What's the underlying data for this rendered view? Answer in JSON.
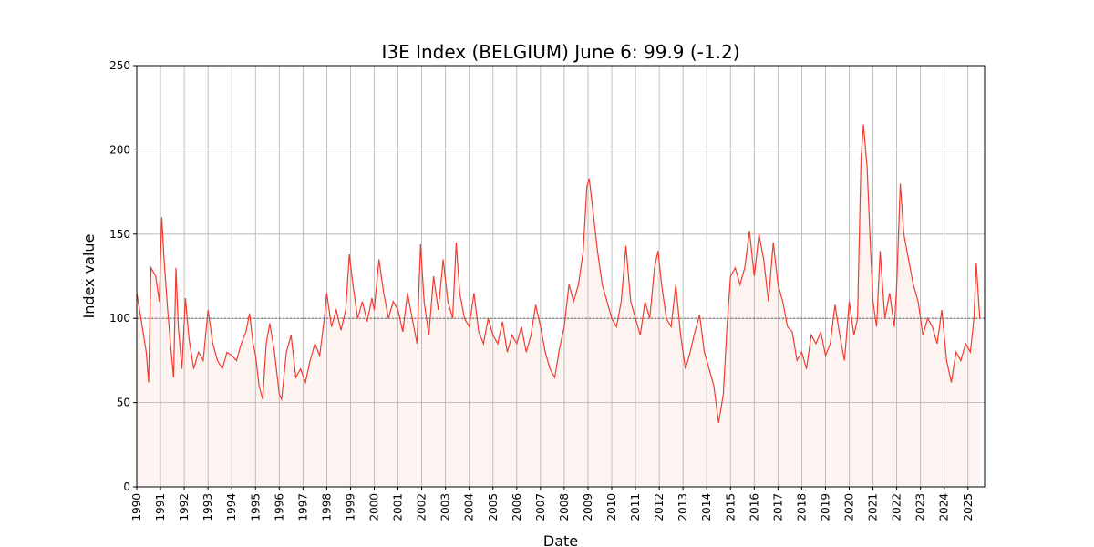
{
  "chart_data": {
    "type": "line",
    "title": "I3E Index (BELGIUM) June 6: 99.9 (-1.2)",
    "xlabel": "Date",
    "ylabel": "Index value",
    "x": [
      1990.0,
      1990.2,
      1990.4,
      1990.5,
      1990.6,
      1990.8,
      1990.95,
      1991.05,
      1991.15,
      1991.3,
      1991.45,
      1991.55,
      1991.65,
      1991.75,
      1991.9,
      1992.05,
      1992.2,
      1992.4,
      1992.6,
      1992.8,
      1993.0,
      1993.2,
      1993.4,
      1993.6,
      1993.8,
      1994.0,
      1994.2,
      1994.4,
      1994.6,
      1994.75,
      1994.9,
      1995.0,
      1995.15,
      1995.3,
      1995.45,
      1995.6,
      1995.8,
      1996.0,
      1996.1,
      1996.3,
      1996.5,
      1996.7,
      1996.9,
      1997.1,
      1997.3,
      1997.5,
      1997.7,
      1997.9,
      1998.0,
      1998.2,
      1998.4,
      1998.6,
      1998.8,
      1998.95,
      1999.1,
      1999.3,
      1999.5,
      1999.7,
      1999.9,
      2000.0,
      2000.2,
      2000.4,
      2000.6,
      2000.8,
      2001.0,
      2001.2,
      2001.4,
      2001.6,
      2001.8,
      2001.95,
      2002.1,
      2002.3,
      2002.5,
      2002.7,
      2002.9,
      2003.1,
      2003.3,
      2003.45,
      2003.6,
      2003.8,
      2004.0,
      2004.2,
      2004.4,
      2004.6,
      2004.8,
      2005.0,
      2005.2,
      2005.4,
      2005.6,
      2005.8,
      2006.0,
      2006.2,
      2006.4,
      2006.6,
      2006.8,
      2007.0,
      2007.2,
      2007.4,
      2007.6,
      2007.8,
      2008.0,
      2008.2,
      2008.4,
      2008.6,
      2008.8,
      2008.95,
      2009.05,
      2009.2,
      2009.4,
      2009.6,
      2009.8,
      2010.0,
      2010.2,
      2010.4,
      2010.6,
      2010.8,
      2011.0,
      2011.2,
      2011.4,
      2011.6,
      2011.8,
      2011.95,
      2012.1,
      2012.3,
      2012.5,
      2012.7,
      2012.9,
      2013.1,
      2013.3,
      2013.5,
      2013.7,
      2013.9,
      2014.1,
      2014.3,
      2014.5,
      2014.7,
      2014.85,
      2015.0,
      2015.2,
      2015.4,
      2015.6,
      2015.8,
      2016.0,
      2016.2,
      2016.4,
      2016.6,
      2016.8,
      2017.0,
      2017.2,
      2017.4,
      2017.6,
      2017.8,
      2018.0,
      2018.2,
      2018.4,
      2018.6,
      2018.8,
      2019.0,
      2019.2,
      2019.4,
      2019.6,
      2019.8,
      2020.0,
      2020.2,
      2020.35,
      2020.5,
      2020.6,
      2020.75,
      2020.9,
      2021.0,
      2021.15,
      2021.3,
      2021.5,
      2021.7,
      2021.9,
      2022.0,
      2022.15,
      2022.3,
      2022.5,
      2022.7,
      2022.9,
      2023.1,
      2023.3,
      2023.5,
      2023.7,
      2023.9,
      2024.1,
      2024.3,
      2024.5,
      2024.7,
      2024.9,
      2025.1,
      2025.25,
      2025.35,
      2025.45,
      2025.5
    ],
    "values": [
      115,
      98,
      80,
      62,
      130,
      125,
      110,
      160,
      135,
      105,
      80,
      65,
      130,
      95,
      70,
      112,
      88,
      70,
      80,
      75,
      105,
      85,
      75,
      70,
      80,
      78,
      75,
      85,
      92,
      103,
      85,
      78,
      60,
      52,
      85,
      97,
      80,
      55,
      52,
      80,
      90,
      65,
      70,
      62,
      75,
      85,
      78,
      100,
      115,
      95,
      105,
      93,
      105,
      138,
      120,
      100,
      110,
      98,
      112,
      105,
      135,
      115,
      100,
      110,
      105,
      92,
      115,
      100,
      85,
      144,
      110,
      90,
      125,
      105,
      135,
      110,
      100,
      145,
      115,
      100,
      95,
      115,
      92,
      85,
      100,
      90,
      85,
      98,
      80,
      90,
      85,
      95,
      80,
      90,
      108,
      95,
      80,
      70,
      65,
      82,
      95,
      120,
      110,
      120,
      140,
      178,
      183,
      165,
      140,
      120,
      110,
      100,
      95,
      110,
      143,
      110,
      100,
      90,
      110,
      100,
      130,
      140,
      120,
      100,
      95,
      120,
      90,
      70,
      80,
      92,
      102,
      80,
      70,
      60,
      38,
      55,
      95,
      125,
      130,
      120,
      130,
      152,
      125,
      150,
      135,
      110,
      145,
      120,
      110,
      95,
      92,
      75,
      80,
      70,
      90,
      85,
      92,
      78,
      85,
      108,
      90,
      75,
      110,
      90,
      100,
      195,
      215,
      190,
      140,
      110,
      95,
      140,
      100,
      115,
      95,
      120,
      180,
      150,
      135,
      120,
      110,
      90,
      100,
      95,
      85,
      105,
      75,
      62,
      80,
      75,
      85,
      80,
      100,
      133,
      110,
      99.9
    ],
    "color": "#f03c30",
    "fill": "#fdf3f1",
    "hline": 100,
    "xlim": [
      1990,
      2025.7
    ],
    "ylim": [
      0,
      250
    ],
    "xticks": [
      1990,
      1991,
      1992,
      1993,
      1994,
      1995,
      1996,
      1997,
      1998,
      1999,
      2000,
      2001,
      2002,
      2003,
      2004,
      2005,
      2006,
      2007,
      2008,
      2009,
      2010,
      2011,
      2012,
      2013,
      2014,
      2015,
      2016,
      2017,
      2018,
      2019,
      2020,
      2021,
      2022,
      2023,
      2024,
      2025
    ],
    "yticks": [
      0,
      50,
      100,
      150,
      200,
      250
    ],
    "grid": true
  }
}
